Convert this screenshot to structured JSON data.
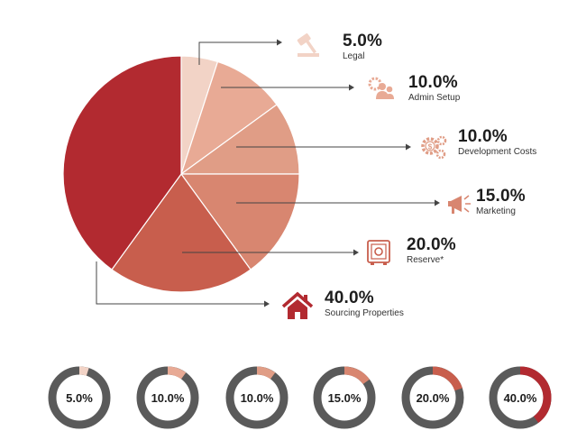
{
  "chart_data": [
    {
      "type": "pie",
      "categories": [
        "Legal",
        "Admin Setup",
        "Development Costs",
        "Marketing",
        "Reserve*",
        "Sourcing Properties"
      ],
      "labels": [
        "5.0%",
        "10.0%",
        "10.0%",
        "15.0%",
        "20.0%",
        "40.0%"
      ],
      "values": [
        5,
        10,
        10,
        15,
        20,
        40
      ],
      "icons": [
        "gavel-icon",
        "users-gear-icon",
        "dollar-gears-icon",
        "megaphone-icon",
        "safe-icon",
        "house-icon"
      ],
      "colors": [
        "#f2d3c6",
        "#e8aa95",
        "#e09d86",
        "#d88670",
        "#c85e4d",
        "#b22a30"
      ]
    },
    {
      "type": "pie",
      "subtype": "donut-row",
      "labels": [
        "5.0%",
        "10.0%",
        "10.0%",
        "15.0%",
        "20.0%",
        "40.0%"
      ],
      "values": [
        5,
        10,
        10,
        15,
        20,
        40
      ],
      "track_color": "#5a5a5a",
      "colors": [
        "#f2d3c6",
        "#e8aa95",
        "#e09d86",
        "#d88670",
        "#c85e4d",
        "#b22a30"
      ]
    }
  ]
}
